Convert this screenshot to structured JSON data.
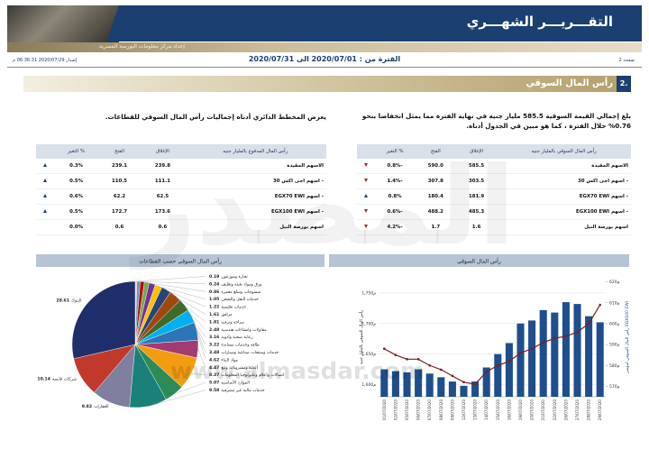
{
  "header": {
    "title": "التقـــريـــر الشهـــري",
    "subtitle": "إعداد مركز معلومات البورصة المصرية",
    "issued": "إصدار 2020/07/29 06:36:31 م",
    "period": "الفترة من : 2020/07/01 الى 2020/07/31",
    "page": "صفحة 2"
  },
  "section": {
    "number": "2.",
    "title": "رأس المال السوقي"
  },
  "paragraphs": [
    "بلغ إجمالي القيمة السوقية 585.5 مليار جنيه في نهاية الفترة مما يمثل انخفاضا بنحو 0.76% خلال الفترة ، كما هو مبين في الجدول أدناه.",
    "يعرض المخطط الدائري أدناه إجماليات رأس المال السوقي للقطاعات."
  ],
  "tables": [
    {
      "header": [
        "رأس المال السوقي بالمليار جنيه",
        "الإغلاق",
        "الفتح",
        "% التغير"
      ],
      "rows": [
        [
          "الاسهم المقيدة",
          "585.5",
          "590.0",
          "-0.8%"
        ],
        [
          "- اسهم اجى اكس 30",
          "303.5",
          "307.8",
          "-1.4%"
        ],
        [
          "- اسهم EGX70 EWI",
          "181.9",
          "180.4",
          "0.8%"
        ],
        [
          "- اسهم EGX100 EWI",
          "485.3",
          "488.2",
          "-0.6%"
        ],
        [
          "اسهم بورصة النيل",
          "1.6",
          "1.7",
          "-4.2%"
        ]
      ]
    },
    {
      "header": [
        "رأس المال المدفوع بالمليار جنيه",
        "الإغلاق",
        "الفتح",
        "% التغير"
      ],
      "rows": [
        [
          "الاسهم المقيدة",
          "239.8",
          "239.1",
          "0.3%"
        ],
        [
          "- اسهم اجى اكس 30",
          "111.1",
          "110.5",
          "0.5%"
        ],
        [
          "- اسهم EGX70 EWI",
          "62.5",
          "62.2",
          "0.6%"
        ],
        [
          "- اسهم EGX100 EWI",
          "173.6",
          "172.7",
          "0.5%"
        ],
        [
          "اسهم بورصة النيل",
          "0.6",
          "0.6",
          "0.0%"
        ]
      ]
    }
  ],
  "charts": [
    {
      "type": "bar-line",
      "title": "رأس المال السوقي",
      "ylabel": "رأس المال السوقي بالمليار جنيه",
      "y2label": "رأس المال السوقي لمؤشر EGX100 EWI",
      "categories": [
        "01/07/2020",
        "02/07/2020",
        "05/07/2020",
        "06/07/2020",
        "07/07/2020",
        "08/07/2020",
        "09/07/2020",
        "12/07/2020",
        "13/07/2020",
        "14/07/2020",
        "15/07/2020",
        "16/07/2020",
        "19/07/2020",
        "20/07/2020",
        "21/07/2020",
        "22/07/2020",
        "26/07/2020",
        "27/07/2020",
        "28/07/2020",
        "29/07/2020"
      ],
      "ylim": [
        1580,
        1775
      ],
      "yticks": [
        {
          "value": 1600,
          "label": "1,600م"
        },
        {
          "value": 1650,
          "label": "1,650م"
        },
        {
          "value": 1700,
          "label": "1,700م"
        },
        {
          "value": 1750,
          "label": "1,750م"
        }
      ],
      "y2lim": [
        565,
        622
      ],
      "y2ticks": [
        {
          "value": 570,
          "label": "م570"
        },
        {
          "value": 580,
          "label": "م580"
        },
        {
          "value": 590,
          "label": "م590"
        },
        {
          "value": 600,
          "label": "م600"
        },
        {
          "value": 610,
          "label": "م610"
        },
        {
          "value": 620,
          "label": "م620"
        }
      ],
      "series": [
        {
          "type": "bar",
          "color": "#1f4e8c",
          "values": [
            1625,
            1622,
            1620,
            1625,
            1618,
            1612,
            1605,
            1598,
            1605,
            1628,
            1650,
            1668,
            1700,
            1705,
            1722,
            1718,
            1735,
            1732,
            1712,
            1702
          ]
        },
        {
          "type": "line",
          "axis": "y2",
          "color": "#7a1f1f",
          "values": [
            588,
            585,
            583,
            583,
            580,
            578,
            575,
            572,
            571,
            577,
            580,
            582,
            586,
            588,
            591,
            593,
            594,
            596,
            600,
            609
          ]
        }
      ],
      "grid": true
    },
    {
      "type": "pie",
      "title": "رأس المال السوقي حسب القطاعات",
      "categories": [
        "تجارة وموزعون",
        "ورق ومواد تعبئة وتغليف",
        "منسوجات وسلع معمرة",
        "خدمات النقل والشحن",
        "خدمات تعليمية",
        "مرافق",
        "سياحة وترفيه",
        "مقاولات وانشاءات هندسية",
        "رعاية صحية وأدوية",
        "طاقة وخدمات مساندة",
        "خدمات ومنتجات صناعية وسيارات",
        "مواد البناء",
        "أغذية ومشروبات وتبغ",
        "اتصالات واعلام وتكنولوجيا المعلومات",
        "الموارد الأساسية",
        "خدمات مالية غير مصرفية",
        "العقارات",
        "شركات قابضة",
        "البنوك"
      ],
      "values": [
        0.19,
        0.24,
        0.86,
        1.05,
        1.22,
        1.61,
        1.81,
        2.48,
        3.16,
        3.22,
        3.48,
        4.62,
        4.47,
        8.37,
        5.07,
        9.58,
        9.82,
        10.14,
        28.61
      ],
      "colors": [
        "#7fb3d5",
        "#f4b183",
        "#5b9bd5",
        "#c00000",
        "#70ad47",
        "#7030a0",
        "#ffc000",
        "#264478",
        "#9e480e",
        "#43682b",
        "#00b0f0",
        "#2e75b6",
        "#a23b72",
        "#f39c12",
        "#2e8b57",
        "#1b7f7a",
        "#7f7f9f",
        "#c0392b",
        "#1f2f6b"
      ]
    }
  ],
  "watermark": {
    "text": "المصدر",
    "url": "www.almasdar.com"
  }
}
